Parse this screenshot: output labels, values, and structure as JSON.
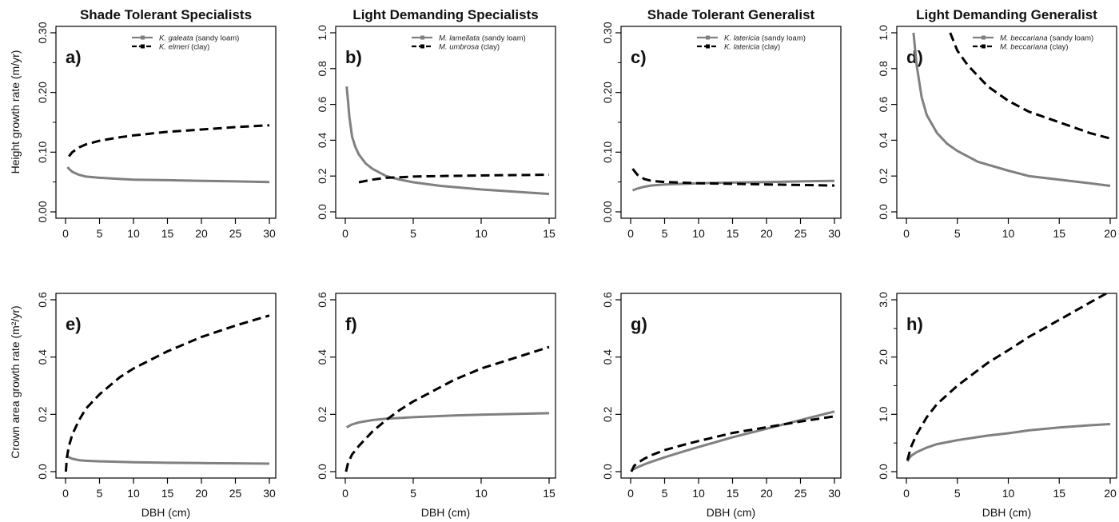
{
  "figure": {
    "row_ylabels": [
      "Height growth rate (m/yr)",
      "Crown area growth rate (m²/yr)"
    ],
    "xlabel": "DBH (cm)"
  },
  "chart_data": [
    {
      "type": "line",
      "panel": "a)",
      "title": "Shade Tolerant Specialists",
      "xlim": [
        0,
        30
      ],
      "ylim": [
        0,
        0.3
      ],
      "xticks": [
        0,
        5,
        10,
        15,
        20,
        25,
        30
      ],
      "yticks": [
        0.0,
        0.1,
        0.2,
        0.3
      ],
      "ytick_labels": [
        "0.00",
        "0.10",
        "0.20",
        "0.30"
      ],
      "yminor": [
        0.05,
        0.15,
        0.25
      ],
      "legend": "top-right",
      "series": [
        {
          "name": "K. galeata",
          "suffix": " (sandy loam)",
          "style": "solid",
          "color": "#808080",
          "x": [
            0.3,
            0.5,
            1,
            2,
            3,
            5,
            8,
            10,
            15,
            20,
            25,
            30
          ],
          "y": [
            0.075,
            0.072,
            0.067,
            0.062,
            0.059,
            0.057,
            0.055,
            0.054,
            0.053,
            0.052,
            0.051,
            0.05
          ]
        },
        {
          "name": "K. elmeri",
          "suffix": " (clay)",
          "style": "dashed",
          "color": "#000000",
          "x": [
            0.5,
            1,
            2,
            3,
            5,
            8,
            10,
            15,
            20,
            25,
            30
          ],
          "y": [
            0.093,
            0.1,
            0.108,
            0.113,
            0.119,
            0.125,
            0.128,
            0.134,
            0.138,
            0.142,
            0.145
          ]
        }
      ]
    },
    {
      "type": "line",
      "panel": "b)",
      "title": "Light Demanding Specialists",
      "xlim": [
        0,
        15
      ],
      "ylim": [
        0,
        1.0
      ],
      "xticks": [
        0,
        5,
        10,
        15
      ],
      "yticks": [
        0.0,
        0.2,
        0.4,
        0.6,
        0.8,
        1.0
      ],
      "ytick_labels": [
        "0.0",
        "0.2",
        "0.4",
        "0.6",
        "0.8",
        "1.0"
      ],
      "yminor": [],
      "legend": "top-right",
      "series": [
        {
          "name": "M. lamellata",
          "suffix": " (sandy loam)",
          "style": "solid",
          "color": "#808080",
          "x": [
            0.1,
            0.2,
            0.3,
            0.5,
            0.75,
            1,
            1.5,
            2,
            3,
            4,
            5,
            7,
            10,
            12,
            15
          ],
          "y": [
            0.7,
            0.62,
            0.53,
            0.42,
            0.36,
            0.32,
            0.27,
            0.24,
            0.2,
            0.18,
            0.165,
            0.145,
            0.125,
            0.115,
            0.1
          ]
        },
        {
          "name": "M. umbrosa",
          "suffix": " (clay)",
          "style": "dashed",
          "color": "#000000",
          "x": [
            1,
            2,
            3,
            4,
            5,
            7,
            10,
            12,
            15
          ],
          "y": [
            0.165,
            0.18,
            0.19,
            0.193,
            0.197,
            0.2,
            0.203,
            0.205,
            0.207
          ]
        }
      ]
    },
    {
      "type": "line",
      "panel": "c)",
      "title": "Shade Tolerant Generalist",
      "xlim": [
        0,
        30
      ],
      "ylim": [
        0,
        0.3
      ],
      "xticks": [
        0,
        5,
        10,
        15,
        20,
        25,
        30
      ],
      "yticks": [
        0.0,
        0.1,
        0.2,
        0.3
      ],
      "ytick_labels": [
        "0.00",
        "0.10",
        "0.20",
        "0.30"
      ],
      "yminor": [
        0.05,
        0.15,
        0.25
      ],
      "legend": "top-right",
      "series": [
        {
          "name": "K. latericia",
          "suffix": " (sandy loam)",
          "style": "solid",
          "color": "#808080",
          "x": [
            0.3,
            1,
            2,
            3,
            5,
            10,
            15,
            20,
            25,
            30
          ],
          "y": [
            0.036,
            0.039,
            0.042,
            0.044,
            0.046,
            0.048,
            0.049,
            0.05,
            0.051,
            0.052
          ]
        },
        {
          "name": "K. latericia",
          "suffix": " (clay)",
          "style": "dashed",
          "color": "#000000",
          "x": [
            0.3,
            1,
            2,
            3,
            5,
            10,
            15,
            20,
            25,
            30
          ],
          "y": [
            0.072,
            0.062,
            0.055,
            0.052,
            0.05,
            0.048,
            0.047,
            0.046,
            0.045,
            0.044
          ]
        }
      ]
    },
    {
      "type": "line",
      "panel": "d)",
      "title": "Light Demanding Generalist",
      "xlim": [
        0,
        20
      ],
      "ylim": [
        0,
        1.0
      ],
      "xticks": [
        0,
        5,
        10,
        15,
        20
      ],
      "yticks": [
        0.0,
        0.2,
        0.4,
        0.6,
        0.8,
        1.0
      ],
      "ytick_labels": [
        "0.0",
        "0.2",
        "0.4",
        "0.6",
        "0.8",
        "1.0"
      ],
      "yminor": [],
      "legend": "top-right",
      "series": [
        {
          "name": "M. beccariana",
          "suffix": " (sandy loam)",
          "style": "solid",
          "color": "#808080",
          "x": [
            0.7,
            1,
            1.5,
            2,
            3,
            4,
            5,
            7,
            10,
            12,
            15,
            18,
            20
          ],
          "y": [
            1.0,
            0.82,
            0.64,
            0.54,
            0.44,
            0.38,
            0.34,
            0.28,
            0.23,
            0.2,
            0.18,
            0.16,
            0.145
          ]
        },
        {
          "name": "M. beccariana",
          "suffix": " (clay)",
          "style": "dashed",
          "color": "#000000",
          "x": [
            4.3,
            5,
            6,
            7,
            8,
            10,
            12,
            15,
            18,
            20
          ],
          "y": [
            1.0,
            0.9,
            0.82,
            0.76,
            0.7,
            0.62,
            0.56,
            0.5,
            0.44,
            0.41
          ]
        }
      ]
    },
    {
      "type": "line",
      "panel": "e)",
      "title": "",
      "xlim": [
        0,
        30
      ],
      "ylim": [
        0,
        0.6
      ],
      "xticks": [
        0,
        5,
        10,
        15,
        20,
        25,
        30
      ],
      "yticks": [
        0.0,
        0.2,
        0.4,
        0.6
      ],
      "ytick_labels": [
        "0.0",
        "0.2",
        "0.4",
        "0.6"
      ],
      "yminor": [],
      "series": [
        {
          "name": "K. galeata",
          "style": "solid",
          "color": "#808080",
          "x": [
            0.3,
            0.5,
            1,
            2,
            3,
            5,
            8,
            10,
            15,
            20,
            25,
            30
          ],
          "y": [
            0.055,
            0.05,
            0.045,
            0.04,
            0.038,
            0.036,
            0.034,
            0.033,
            0.031,
            0.03,
            0.029,
            0.028
          ]
        },
        {
          "name": "K. elmeri",
          "style": "dashed",
          "color": "#000000",
          "x": [
            0.05,
            0.2,
            0.5,
            1,
            2,
            3,
            5,
            8,
            10,
            15,
            20,
            25,
            30
          ],
          "y": [
            0.0,
            0.05,
            0.09,
            0.13,
            0.18,
            0.22,
            0.27,
            0.33,
            0.36,
            0.42,
            0.47,
            0.51,
            0.545
          ]
        }
      ]
    },
    {
      "type": "line",
      "panel": "f)",
      "title": "",
      "xlim": [
        0,
        15
      ],
      "ylim": [
        0,
        0.6
      ],
      "xticks": [
        0,
        5,
        10,
        15
      ],
      "yticks": [
        0.0,
        0.2,
        0.4,
        0.6
      ],
      "ytick_labels": [
        "0.0",
        "0.2",
        "0.4",
        "0.6"
      ],
      "yminor": [],
      "series": [
        {
          "name": "M. lamellata",
          "style": "solid",
          "color": "#808080",
          "x": [
            0.1,
            0.3,
            0.5,
            1,
            2,
            3,
            5,
            8,
            10,
            12,
            15
          ],
          "y": [
            0.155,
            0.16,
            0.165,
            0.172,
            0.18,
            0.185,
            0.19,
            0.196,
            0.199,
            0.201,
            0.204
          ]
        },
        {
          "name": "M. umbrosa",
          "style": "dashed",
          "color": "#000000",
          "x": [
            0.05,
            0.2,
            0.5,
            1,
            2,
            3,
            4,
            5,
            6,
            8,
            10,
            12,
            15
          ],
          "y": [
            0.0,
            0.03,
            0.06,
            0.09,
            0.14,
            0.18,
            0.215,
            0.245,
            0.27,
            0.32,
            0.36,
            0.39,
            0.435
          ]
        }
      ]
    },
    {
      "type": "line",
      "panel": "g)",
      "title": "",
      "xlim": [
        0,
        30
      ],
      "ylim": [
        0,
        0.6
      ],
      "xticks": [
        0,
        5,
        10,
        15,
        20,
        25,
        30
      ],
      "yticks": [
        0.0,
        0.2,
        0.4,
        0.6
      ],
      "ytick_labels": [
        "0.0",
        "0.2",
        "0.4",
        "0.6"
      ],
      "yminor": [],
      "series": [
        {
          "name": "K. latericia",
          "style": "solid",
          "color": "#808080",
          "x": [
            0.1,
            1,
            2,
            3,
            5,
            8,
            10,
            15,
            20,
            25,
            30
          ],
          "y": [
            0.005,
            0.015,
            0.025,
            0.034,
            0.05,
            0.072,
            0.086,
            0.12,
            0.15,
            0.18,
            0.21
          ]
        },
        {
          "name": "K. latericia",
          "style": "dashed",
          "color": "#000000",
          "x": [
            0.1,
            0.5,
            1,
            2,
            3,
            5,
            8,
            10,
            15,
            20,
            25,
            30
          ],
          "y": [
            0.0,
            0.02,
            0.03,
            0.045,
            0.057,
            0.075,
            0.095,
            0.107,
            0.135,
            0.155,
            0.175,
            0.193
          ]
        }
      ]
    },
    {
      "type": "line",
      "panel": "h)",
      "title": "",
      "xlim": [
        0,
        20
      ],
      "ylim": [
        0,
        3.0
      ],
      "xticks": [
        0,
        5,
        10,
        15,
        20
      ],
      "yticks": [
        0.0,
        1.0,
        2.0,
        3.0
      ],
      "ytick_labels": [
        "0.0",
        "1.0",
        "2.0",
        "3.0"
      ],
      "yminor": [
        0.5,
        1.5,
        2.5
      ],
      "series": [
        {
          "name": "M. beccariana",
          "style": "solid",
          "color": "#808080",
          "x": [
            0.1,
            0.3,
            0.5,
            1,
            2,
            3,
            5,
            8,
            10,
            12,
            15,
            18,
            20
          ],
          "y": [
            0.18,
            0.24,
            0.28,
            0.34,
            0.42,
            0.48,
            0.55,
            0.63,
            0.67,
            0.72,
            0.77,
            0.81,
            0.83
          ]
        },
        {
          "name": "M. beccariana",
          "style": "dashed",
          "color": "#000000",
          "x": [
            0.1,
            0.3,
            0.5,
            1,
            2,
            3,
            5,
            8,
            10,
            12,
            15,
            18,
            20
          ],
          "y": [
            0.2,
            0.33,
            0.45,
            0.65,
            0.95,
            1.18,
            1.5,
            1.9,
            2.12,
            2.35,
            2.65,
            2.95,
            3.15
          ]
        }
      ]
    }
  ]
}
